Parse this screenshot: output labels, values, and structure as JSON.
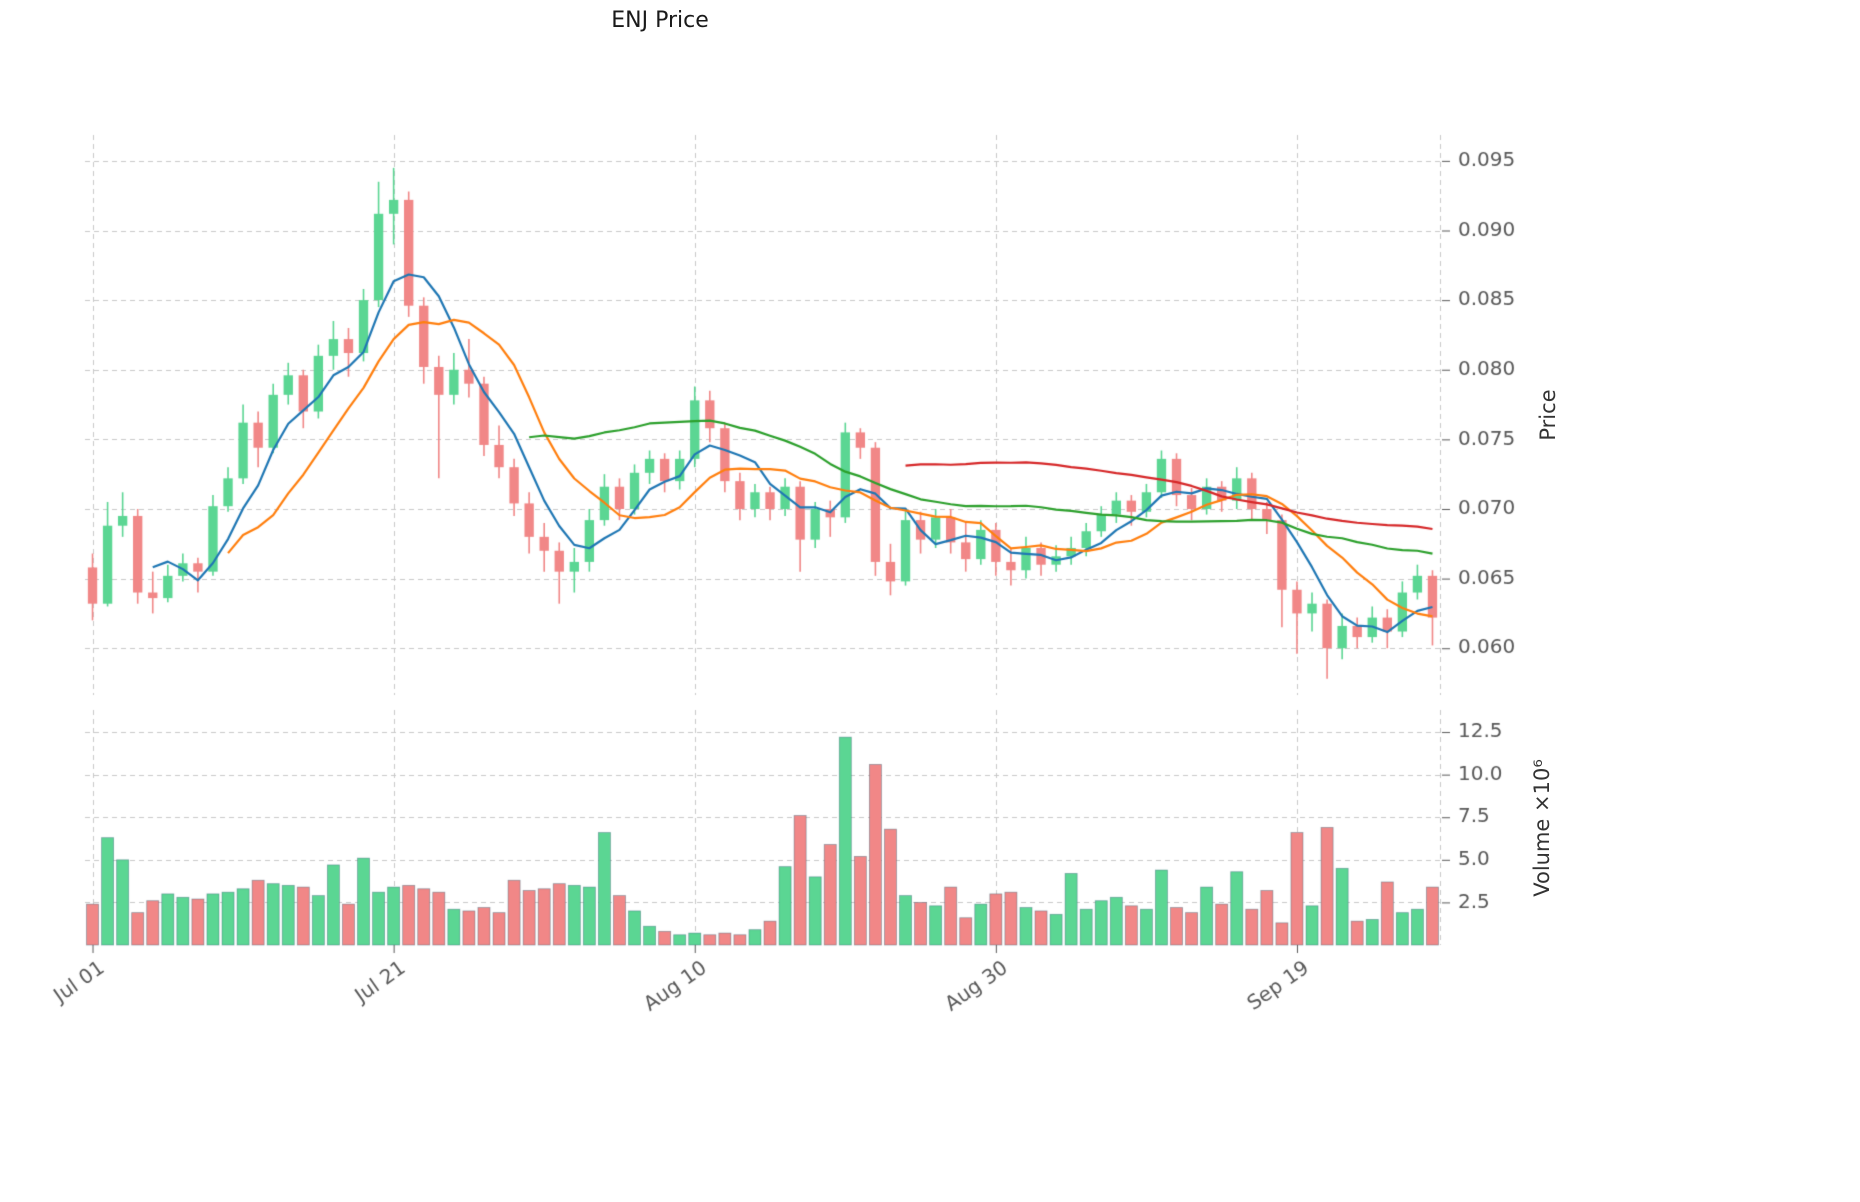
{
  "chart_data": {
    "type": "candlestick",
    "title": "ENJ Price",
    "ylabel": "Price",
    "ylabel_lower": "Volume  ×10⁶",
    "legend_position": "none",
    "grid": true,
    "x_tick_labels": [
      "Jul 01",
      "Jul 21",
      "Aug 10",
      "Aug 30",
      "Sep 19"
    ],
    "x_tick_indices": [
      0,
      20,
      40,
      60,
      80
    ],
    "price_tick_values": [
      0.06,
      0.065,
      0.07,
      0.075,
      0.08,
      0.085,
      0.09,
      0.095
    ],
    "price_tick_labels": [
      "0.060",
      "0.065",
      "0.070",
      "0.075",
      "0.080",
      "0.085",
      "0.090",
      "0.095"
    ],
    "volume_tick_values": [
      2.5,
      5.0,
      7.5,
      10.0,
      12.5
    ],
    "volume_tick_labels": [
      "2.5",
      "5.0",
      "7.5",
      "10.0",
      "12.5"
    ],
    "price_axis_range": [
      0.057,
      0.0965
    ],
    "volume_axis_range": [
      0,
      13.5
    ],
    "volume_unit": "10^6",
    "moving_average_windows": [
      5,
      10,
      30,
      55
    ],
    "colors": {
      "up": "#5bd693",
      "down": "#f18787",
      "ma_blue": "#1f77b4",
      "ma_orange": "#ff7f0e",
      "ma_green": "#2ca02c",
      "ma_red": "#d62728",
      "grid": "#c9c9c9",
      "tick_text": "#595959",
      "title_text": "#1a1a1a"
    },
    "candles_format": [
      "open",
      "high",
      "low",
      "close",
      "volume_millions"
    ],
    "candles": [
      [
        0.0658,
        0.0668,
        0.062,
        0.0632,
        2.4
      ],
      [
        0.0632,
        0.0705,
        0.063,
        0.0688,
        6.3
      ],
      [
        0.0688,
        0.0712,
        0.068,
        0.0695,
        5.0
      ],
      [
        0.0695,
        0.07,
        0.0632,
        0.064,
        1.9
      ],
      [
        0.064,
        0.0655,
        0.0625,
        0.0636,
        2.6
      ],
      [
        0.0636,
        0.066,
        0.0633,
        0.0652,
        3.0
      ],
      [
        0.0652,
        0.0668,
        0.0648,
        0.0661,
        2.8
      ],
      [
        0.0661,
        0.0665,
        0.064,
        0.0655,
        2.7
      ],
      [
        0.0655,
        0.071,
        0.0652,
        0.0702,
        3.0
      ],
      [
        0.0702,
        0.073,
        0.0698,
        0.0722,
        3.1
      ],
      [
        0.0722,
        0.0775,
        0.0718,
        0.0762,
        3.3
      ],
      [
        0.0762,
        0.077,
        0.073,
        0.0744,
        3.8
      ],
      [
        0.0744,
        0.079,
        0.074,
        0.0782,
        3.6
      ],
      [
        0.0782,
        0.0805,
        0.0775,
        0.0796,
        3.5
      ],
      [
        0.0796,
        0.08,
        0.0758,
        0.077,
        3.4
      ],
      [
        0.077,
        0.0818,
        0.0765,
        0.081,
        2.9
      ],
      [
        0.081,
        0.0835,
        0.08,
        0.0822,
        4.7
      ],
      [
        0.0822,
        0.083,
        0.0795,
        0.0812,
        2.4
      ],
      [
        0.0812,
        0.0858,
        0.0806,
        0.085,
        5.1
      ],
      [
        0.085,
        0.0935,
        0.0845,
        0.0912,
        3.1
      ],
      [
        0.0912,
        0.0945,
        0.089,
        0.0922,
        3.4
      ],
      [
        0.0922,
        0.0928,
        0.0838,
        0.0846,
        3.5
      ],
      [
        0.0846,
        0.0852,
        0.079,
        0.0802,
        3.3
      ],
      [
        0.0802,
        0.081,
        0.0722,
        0.0782,
        3.1
      ],
      [
        0.0782,
        0.0812,
        0.0775,
        0.08,
        2.1
      ],
      [
        0.08,
        0.0822,
        0.078,
        0.079,
        2.0
      ],
      [
        0.079,
        0.0795,
        0.0738,
        0.0746,
        2.2
      ],
      [
        0.0746,
        0.076,
        0.0722,
        0.073,
        1.9
      ],
      [
        0.073,
        0.0736,
        0.0695,
        0.0704,
        3.8
      ],
      [
        0.0704,
        0.0712,
        0.0668,
        0.068,
        3.2
      ],
      [
        0.068,
        0.069,
        0.0655,
        0.067,
        3.3
      ],
      [
        0.067,
        0.0676,
        0.0632,
        0.0655,
        3.6
      ],
      [
        0.0655,
        0.0672,
        0.064,
        0.0662,
        3.5
      ],
      [
        0.0662,
        0.07,
        0.0655,
        0.0692,
        3.4
      ],
      [
        0.0692,
        0.0725,
        0.0688,
        0.0716,
        6.6
      ],
      [
        0.0716,
        0.0722,
        0.0692,
        0.07,
        2.9
      ],
      [
        0.07,
        0.0732,
        0.0696,
        0.0726,
        2.0
      ],
      [
        0.0726,
        0.0742,
        0.0718,
        0.0736,
        1.1
      ],
      [
        0.0736,
        0.074,
        0.0712,
        0.072,
        0.8
      ],
      [
        0.072,
        0.0742,
        0.0714,
        0.0736,
        0.6
      ],
      [
        0.0736,
        0.0788,
        0.073,
        0.0778,
        0.7
      ],
      [
        0.0778,
        0.0785,
        0.0748,
        0.0758,
        0.6
      ],
      [
        0.0758,
        0.0762,
        0.0712,
        0.072,
        0.7
      ],
      [
        0.072,
        0.0726,
        0.0692,
        0.07,
        0.6
      ],
      [
        0.07,
        0.0718,
        0.0694,
        0.0712,
        0.9
      ],
      [
        0.0712,
        0.0716,
        0.0692,
        0.07,
        1.4
      ],
      [
        0.07,
        0.0722,
        0.0695,
        0.0716,
        4.6
      ],
      [
        0.0716,
        0.072,
        0.0655,
        0.0678,
        7.6
      ],
      [
        0.0678,
        0.0705,
        0.0672,
        0.07,
        4.0
      ],
      [
        0.07,
        0.0706,
        0.068,
        0.0694,
        5.9
      ],
      [
        0.0694,
        0.0762,
        0.069,
        0.0755,
        12.2
      ],
      [
        0.0755,
        0.0758,
        0.0736,
        0.0744,
        5.2
      ],
      [
        0.0744,
        0.0748,
        0.0652,
        0.0662,
        10.6
      ],
      [
        0.0662,
        0.0675,
        0.0638,
        0.0648,
        6.8
      ],
      [
        0.0648,
        0.07,
        0.0645,
        0.0692,
        2.9
      ],
      [
        0.0692,
        0.0698,
        0.0668,
        0.0678,
        2.5
      ],
      [
        0.0678,
        0.07,
        0.0672,
        0.0694,
        2.3
      ],
      [
        0.0694,
        0.07,
        0.0668,
        0.0676,
        3.4
      ],
      [
        0.0676,
        0.069,
        0.0655,
        0.0664,
        1.6
      ],
      [
        0.0664,
        0.0692,
        0.066,
        0.0685,
        2.4
      ],
      [
        0.0685,
        0.069,
        0.0652,
        0.0662,
        3.0
      ],
      [
        0.0662,
        0.0672,
        0.0645,
        0.0656,
        3.1
      ],
      [
        0.0656,
        0.068,
        0.065,
        0.0672,
        2.2
      ],
      [
        0.0672,
        0.0676,
        0.0652,
        0.066,
        2.0
      ],
      [
        0.066,
        0.0674,
        0.0655,
        0.0666,
        1.8
      ],
      [
        0.0666,
        0.068,
        0.066,
        0.0672,
        4.2
      ],
      [
        0.0672,
        0.069,
        0.0666,
        0.0684,
        2.1
      ],
      [
        0.0684,
        0.0702,
        0.068,
        0.0696,
        2.6
      ],
      [
        0.0696,
        0.0712,
        0.069,
        0.0706,
        2.8
      ],
      [
        0.0706,
        0.071,
        0.0688,
        0.0698,
        2.3
      ],
      [
        0.0698,
        0.0718,
        0.0694,
        0.0712,
        2.1
      ],
      [
        0.0712,
        0.0742,
        0.0708,
        0.0736,
        4.4
      ],
      [
        0.0736,
        0.074,
        0.0702,
        0.071,
        2.2
      ],
      [
        0.071,
        0.0715,
        0.0692,
        0.07,
        1.9
      ],
      [
        0.07,
        0.0722,
        0.0696,
        0.0716,
        3.4
      ],
      [
        0.0716,
        0.072,
        0.0698,
        0.0706,
        2.4
      ],
      [
        0.0706,
        0.073,
        0.07,
        0.0722,
        4.3
      ],
      [
        0.0722,
        0.0726,
        0.0692,
        0.07,
        2.1
      ],
      [
        0.07,
        0.0705,
        0.0682,
        0.0692,
        3.2
      ],
      [
        0.0692,
        0.0696,
        0.0615,
        0.0642,
        1.3
      ],
      [
        0.0642,
        0.0648,
        0.0596,
        0.0625,
        6.6
      ],
      [
        0.0625,
        0.064,
        0.0612,
        0.0632,
        2.3
      ],
      [
        0.0632,
        0.0635,
        0.0578,
        0.06,
        6.9
      ],
      [
        0.06,
        0.0625,
        0.0592,
        0.0616,
        4.5
      ],
      [
        0.0616,
        0.0622,
        0.06,
        0.0608,
        1.4
      ],
      [
        0.0608,
        0.063,
        0.0604,
        0.0622,
        1.5
      ],
      [
        0.0622,
        0.0628,
        0.06,
        0.0612,
        3.7
      ],
      [
        0.0612,
        0.0648,
        0.0608,
        0.064,
        1.9
      ],
      [
        0.064,
        0.066,
        0.0635,
        0.0652,
        2.1
      ],
      [
        0.0652,
        0.0656,
        0.0602,
        0.0622,
        3.4
      ]
    ]
  }
}
